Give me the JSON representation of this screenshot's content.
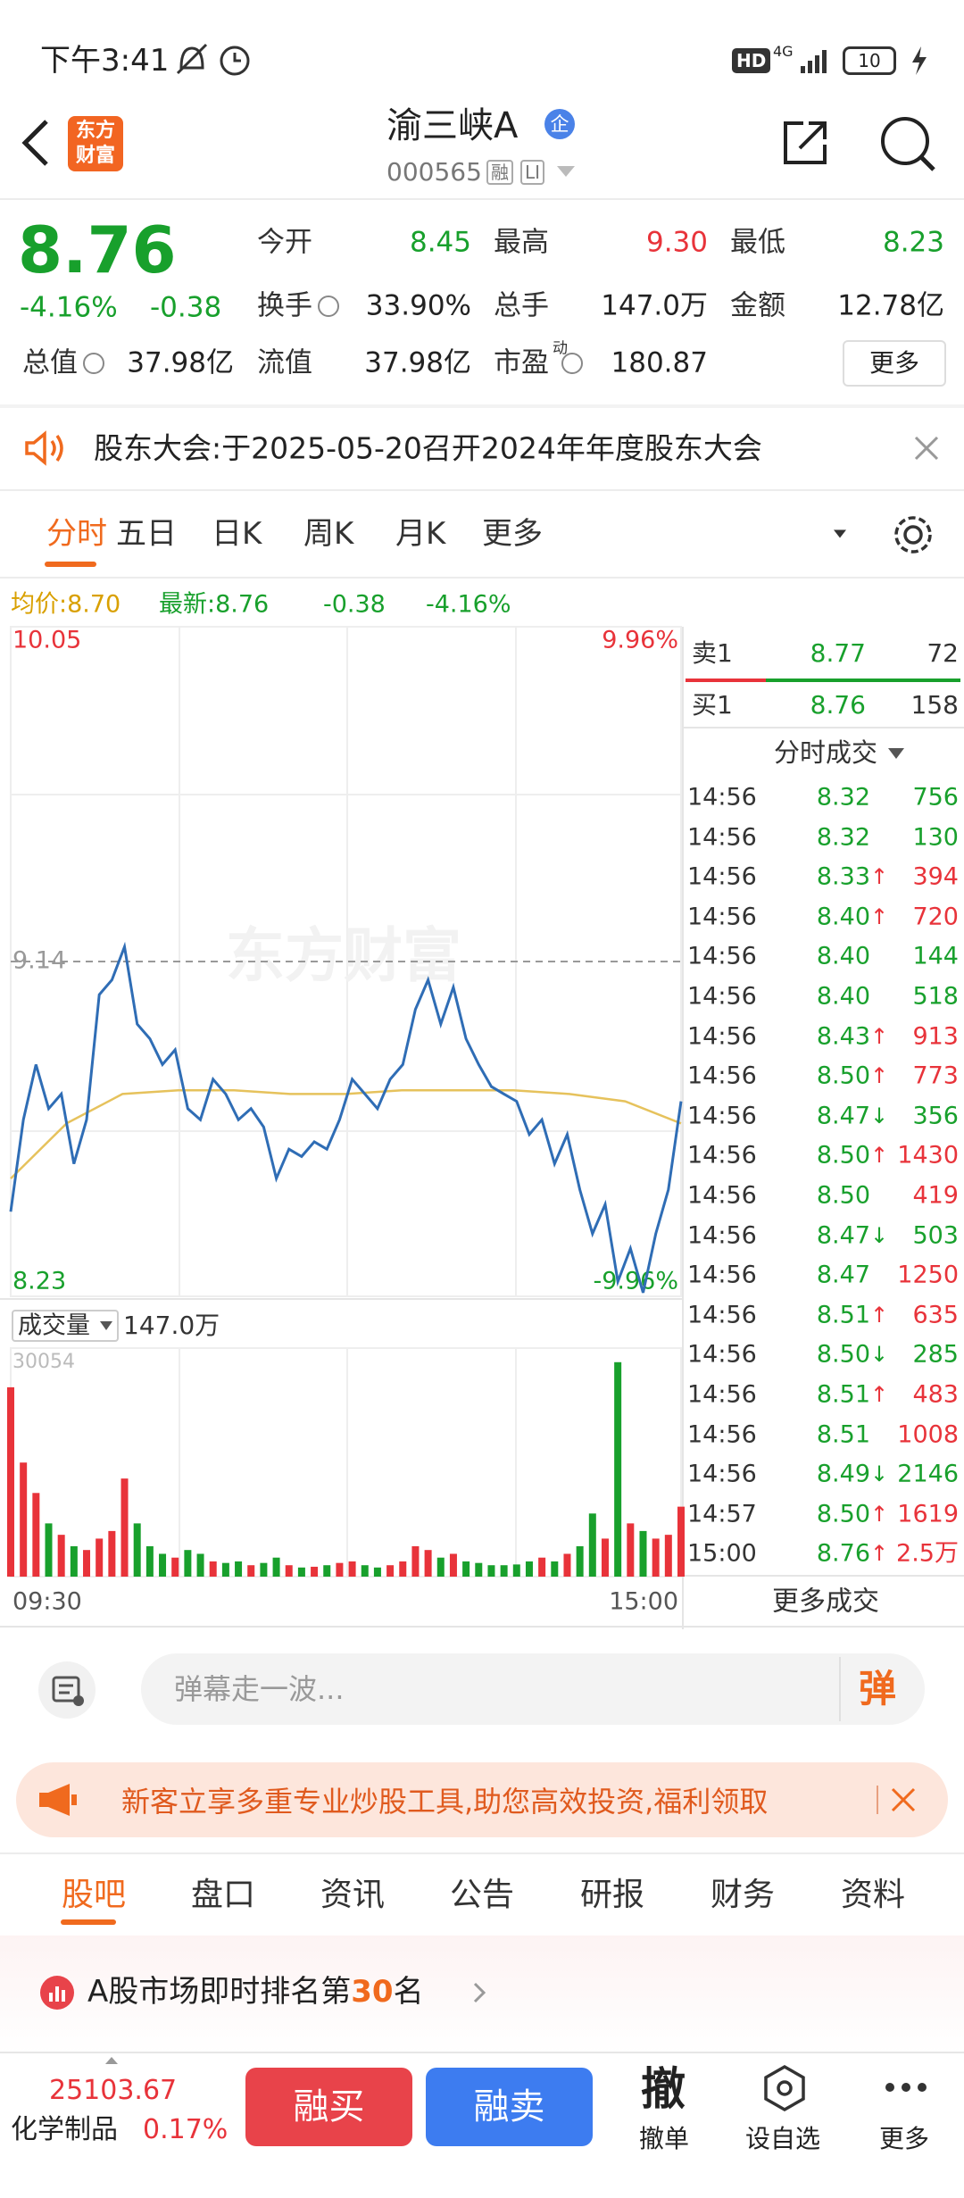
{
  "status_bar": {
    "time": "下午3:41",
    "hd": "HD",
    "network": "4G",
    "battery": "10"
  },
  "header": {
    "logo": [
      "东方",
      "财富"
    ],
    "title": "渝三峡A",
    "badge": "企",
    "code": "000565",
    "tags": [
      "融",
      "LI"
    ]
  },
  "quote": {
    "price": "8.76",
    "change_pct": "-4.16%",
    "change": "-0.38",
    "fields": [
      {
        "label": "今开",
        "value": "8.45"
      },
      {
        "label": "最高",
        "value": "9.30"
      },
      {
        "label": "最低",
        "value": "8.23"
      },
      {
        "label": "换手",
        "value": "33.90%"
      },
      {
        "label": "总手",
        "value": "147.0万"
      },
      {
        "label": "金额",
        "value": "12.78亿"
      },
      {
        "label": "总值",
        "value": "37.98亿"
      },
      {
        "label": "流值",
        "value": "37.98亿"
      },
      {
        "label": "市盈",
        "superscript": "动",
        "value": "180.87"
      }
    ],
    "more": "更多"
  },
  "notice": "股东大会:于2025-05-20召开2024年年度股东大会",
  "tabs": [
    "分时",
    "五日",
    "日K",
    "周K",
    "月K",
    "更多"
  ],
  "chart": {
    "info": [
      "均价:8.70",
      "最新:8.76",
      "-0.38",
      "-4.16%"
    ],
    "ylim": [
      8.23,
      10.05
    ],
    "top_pct": "9.96%",
    "bottom_pct": "-9.96%",
    "prev_close": 9.14,
    "watermark": "东方财富",
    "price_color": "#2f6db5",
    "avg_color": "#e6c25c",
    "price": [
      8.46,
      8.71,
      8.86,
      8.74,
      8.78,
      8.59,
      8.71,
      9.05,
      9.09,
      9.18,
      8.97,
      8.93,
      8.86,
      8.9,
      8.74,
      8.71,
      8.82,
      8.78,
      8.71,
      8.74,
      8.69,
      8.55,
      8.63,
      8.61,
      8.65,
      8.63,
      8.71,
      8.82,
      8.78,
      8.74,
      8.82,
      8.86,
      9.01,
      9.09,
      8.97,
      9.07,
      8.93,
      8.86,
      8.8,
      8.78,
      8.76,
      8.67,
      8.71,
      8.59,
      8.67,
      8.52,
      8.4,
      8.48,
      8.27,
      8.36,
      8.24,
      8.4,
      8.52,
      8.76
    ],
    "avg": [
      8.55,
      8.7,
      8.78,
      8.79,
      8.79,
      8.78,
      8.78,
      8.79,
      8.79,
      8.79,
      8.78,
      8.76,
      8.7
    ],
    "volume_label": "成交量",
    "volume_total": "147.0万",
    "volume_max": 30054,
    "volume": [
      24900,
      15000,
      11000,
      7000,
      5500,
      4000,
      3500,
      5000,
      6000,
      12900,
      7000,
      4000,
      3000,
      2500,
      3500,
      3000,
      2000,
      1800,
      2000,
      1500,
      1800,
      2500,
      1500,
      1200,
      1300,
      1500,
      1800,
      2000,
      1500,
      1200,
      1500,
      2000,
      4000,
      3500,
      2500,
      3000,
      2000,
      1800,
      1500,
      1500,
      1600,
      2000,
      2500,
      2000,
      3000,
      4000,
      8300,
      5000,
      28200,
      7000,
      6000,
      5000,
      5500,
      9200
    ],
    "up_color": "#e8333a",
    "down_color": "#18a02c",
    "time_start": "09:30",
    "time_end": "15:00"
  },
  "order_book": {
    "sell": {
      "label": "卖1",
      "price": "8.77",
      "volume": "72"
    },
    "buy": {
      "label": "买1",
      "price": "8.76",
      "volume": "158"
    }
  },
  "trades": {
    "title": "分时成交",
    "more": "更多成交",
    "rows": [
      {
        "time": "14:56",
        "price": "8.32",
        "volume": "756",
        "color": "#18a02c"
      },
      {
        "time": "14:56",
        "price": "8.32",
        "volume": "130",
        "color": "#18a02c"
      },
      {
        "time": "14:56",
        "price": "8.33",
        "arrow": "↑",
        "volume": "394",
        "color": "#e8333a"
      },
      {
        "time": "14:56",
        "price": "8.40",
        "arrow": "↑",
        "volume": "720",
        "color": "#e8333a"
      },
      {
        "time": "14:56",
        "price": "8.40",
        "volume": "144",
        "color": "#18a02c"
      },
      {
        "time": "14:56",
        "price": "8.40",
        "volume": "518",
        "color": "#18a02c"
      },
      {
        "time": "14:56",
        "price": "8.43",
        "arrow": "↑",
        "volume": "913",
        "color": "#e8333a"
      },
      {
        "time": "14:56",
        "price": "8.50",
        "arrow": "↑",
        "volume": "773",
        "color": "#e8333a"
      },
      {
        "time": "14:56",
        "price": "8.47",
        "arrow": "↓",
        "volume": "356",
        "color": "#18a02c"
      },
      {
        "time": "14:56",
        "price": "8.50",
        "arrow": "↑",
        "volume": "1430",
        "color": "#e8333a"
      },
      {
        "time": "14:56",
        "price": "8.50",
        "volume": "419",
        "color": "#e8333a"
      },
      {
        "time": "14:56",
        "price": "8.47",
        "arrow": "↓",
        "volume": "503",
        "color": "#18a02c"
      },
      {
        "time": "14:56",
        "price": "8.47",
        "volume": "1250",
        "color": "#e8333a"
      },
      {
        "time": "14:56",
        "price": "8.51",
        "arrow": "↑",
        "volume": "635",
        "color": "#e8333a"
      },
      {
        "time": "14:56",
        "price": "8.50",
        "arrow": "↓",
        "volume": "285",
        "color": "#18a02c"
      },
      {
        "time": "14:56",
        "price": "8.51",
        "arrow": "↑",
        "volume": "483",
        "color": "#e8333a"
      },
      {
        "time": "14:56",
        "price": "8.51",
        "volume": "1008",
        "color": "#e8333a"
      },
      {
        "time": "14:56",
        "price": "8.49",
        "arrow": "↓",
        "volume": "2146",
        "color": "#18a02c"
      },
      {
        "time": "14:57",
        "price": "8.50",
        "arrow": "↑",
        "volume": "1619",
        "color": "#e8333a"
      },
      {
        "time": "15:00",
        "price": "8.76",
        "arrow": "↑",
        "volume": "2.5万",
        "color": "#e8333a"
      }
    ]
  },
  "comment": {
    "placeholder": "弹幕走一波...",
    "button": "弹"
  },
  "banner": "新客立享多重专业炒股工具,助您高效投资,福利领取",
  "sub_tabs": [
    "股吧",
    "盘口",
    "资讯",
    "公告",
    "研报",
    "财务",
    "资料"
  ],
  "ranking": {
    "prefix": "A股市场即时排名第",
    "rank": "30",
    "suffix": "名"
  },
  "bottom_bar": {
    "index_value": "25103.67",
    "sector": "化学制品",
    "sector_change": "0.17%",
    "buy": "融买",
    "sell": "融卖",
    "cancel_icon": "撤",
    "cancel": "撤单",
    "watch": "设自选",
    "more": "更多"
  }
}
